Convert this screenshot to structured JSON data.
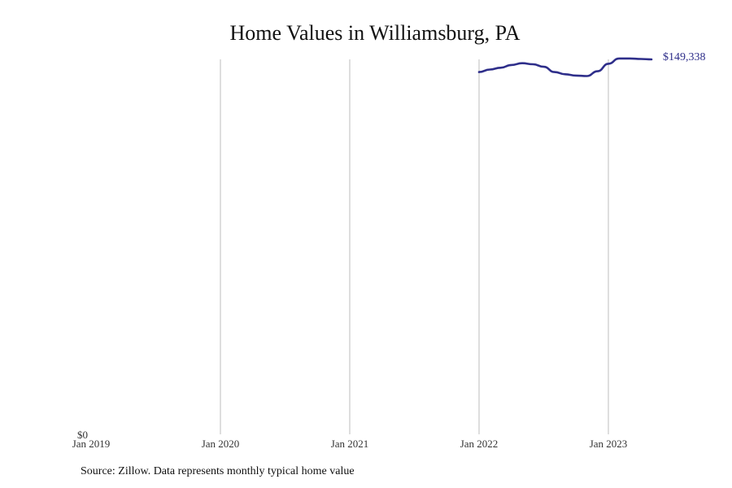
{
  "chart_data": {
    "type": "line",
    "title": "Home Values in Williamsburg, PA",
    "source": "Source: Zillow. Data represents monthly typical home value",
    "x_ticks": [
      "Jan 2019",
      "Jan 2020",
      "Jan 2021",
      "Jan 2022",
      "Jan 2023"
    ],
    "y_ticks": [
      "$0"
    ],
    "ylim": [
      0,
      149338
    ],
    "grid": "vertical",
    "line_color": "#2e2e8a",
    "end_label": "$149,338",
    "series": [
      {
        "x": [
          "2022-01",
          "2022-02",
          "2022-03",
          "2022-04",
          "2022-05",
          "2022-06",
          "2022-07",
          "2022-08",
          "2022-09",
          "2022-10",
          "2022-11",
          "2022-12",
          "2023-01",
          "2023-02",
          "2023-03",
          "2023-04",
          "2023-05"
        ],
        "values": [
          144300,
          145300,
          146000,
          147100,
          147800,
          147400,
          146400,
          144300,
          143400,
          142900,
          142700,
          144600,
          147600,
          149700,
          149700,
          149500,
          149338
        ]
      }
    ]
  }
}
